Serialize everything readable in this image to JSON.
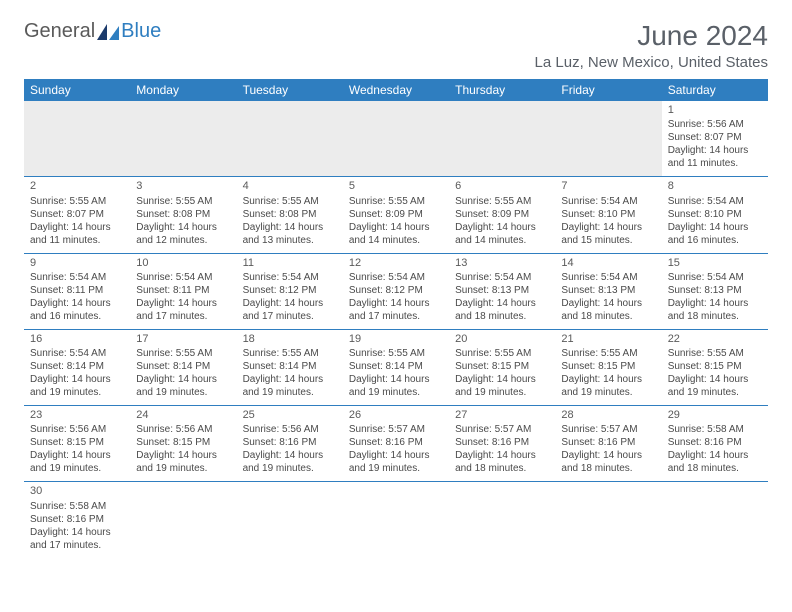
{
  "brand": {
    "part1": "General",
    "part2": "Blue"
  },
  "title": {
    "month": "June 2024",
    "location": "La Luz, New Mexico, United States"
  },
  "colors": {
    "header_bg": "#2f7ec0",
    "header_text": "#ffffff",
    "border": "#2f7ec0",
    "body_text": "#4a4a4a",
    "title_text": "#5a6068",
    "blank_bg": "#ececec",
    "page_bg": "#ffffff"
  },
  "typography": {
    "month_fontsize": 28,
    "location_fontsize": 15,
    "dayhead_fontsize": 12,
    "cell_fontsize": 10
  },
  "day_labels": [
    "Sunday",
    "Monday",
    "Tuesday",
    "Wednesday",
    "Thursday",
    "Friday",
    "Saturday"
  ],
  "weeks": [
    [
      null,
      null,
      null,
      null,
      null,
      null,
      {
        "d": "1",
        "sr": "Sunrise: 5:56 AM",
        "ss": "Sunset: 8:07 PM",
        "dl1": "Daylight: 14 hours",
        "dl2": "and 11 minutes."
      }
    ],
    [
      {
        "d": "2",
        "sr": "Sunrise: 5:55 AM",
        "ss": "Sunset: 8:07 PM",
        "dl1": "Daylight: 14 hours",
        "dl2": "and 11 minutes."
      },
      {
        "d": "3",
        "sr": "Sunrise: 5:55 AM",
        "ss": "Sunset: 8:08 PM",
        "dl1": "Daylight: 14 hours",
        "dl2": "and 12 minutes."
      },
      {
        "d": "4",
        "sr": "Sunrise: 5:55 AM",
        "ss": "Sunset: 8:08 PM",
        "dl1": "Daylight: 14 hours",
        "dl2": "and 13 minutes."
      },
      {
        "d": "5",
        "sr": "Sunrise: 5:55 AM",
        "ss": "Sunset: 8:09 PM",
        "dl1": "Daylight: 14 hours",
        "dl2": "and 14 minutes."
      },
      {
        "d": "6",
        "sr": "Sunrise: 5:55 AM",
        "ss": "Sunset: 8:09 PM",
        "dl1": "Daylight: 14 hours",
        "dl2": "and 14 minutes."
      },
      {
        "d": "7",
        "sr": "Sunrise: 5:54 AM",
        "ss": "Sunset: 8:10 PM",
        "dl1": "Daylight: 14 hours",
        "dl2": "and 15 minutes."
      },
      {
        "d": "8",
        "sr": "Sunrise: 5:54 AM",
        "ss": "Sunset: 8:10 PM",
        "dl1": "Daylight: 14 hours",
        "dl2": "and 16 minutes."
      }
    ],
    [
      {
        "d": "9",
        "sr": "Sunrise: 5:54 AM",
        "ss": "Sunset: 8:11 PM",
        "dl1": "Daylight: 14 hours",
        "dl2": "and 16 minutes."
      },
      {
        "d": "10",
        "sr": "Sunrise: 5:54 AM",
        "ss": "Sunset: 8:11 PM",
        "dl1": "Daylight: 14 hours",
        "dl2": "and 17 minutes."
      },
      {
        "d": "11",
        "sr": "Sunrise: 5:54 AM",
        "ss": "Sunset: 8:12 PM",
        "dl1": "Daylight: 14 hours",
        "dl2": "and 17 minutes."
      },
      {
        "d": "12",
        "sr": "Sunrise: 5:54 AM",
        "ss": "Sunset: 8:12 PM",
        "dl1": "Daylight: 14 hours",
        "dl2": "and 17 minutes."
      },
      {
        "d": "13",
        "sr": "Sunrise: 5:54 AM",
        "ss": "Sunset: 8:13 PM",
        "dl1": "Daylight: 14 hours",
        "dl2": "and 18 minutes."
      },
      {
        "d": "14",
        "sr": "Sunrise: 5:54 AM",
        "ss": "Sunset: 8:13 PM",
        "dl1": "Daylight: 14 hours",
        "dl2": "and 18 minutes."
      },
      {
        "d": "15",
        "sr": "Sunrise: 5:54 AM",
        "ss": "Sunset: 8:13 PM",
        "dl1": "Daylight: 14 hours",
        "dl2": "and 18 minutes."
      }
    ],
    [
      {
        "d": "16",
        "sr": "Sunrise: 5:54 AM",
        "ss": "Sunset: 8:14 PM",
        "dl1": "Daylight: 14 hours",
        "dl2": "and 19 minutes."
      },
      {
        "d": "17",
        "sr": "Sunrise: 5:55 AM",
        "ss": "Sunset: 8:14 PM",
        "dl1": "Daylight: 14 hours",
        "dl2": "and 19 minutes."
      },
      {
        "d": "18",
        "sr": "Sunrise: 5:55 AM",
        "ss": "Sunset: 8:14 PM",
        "dl1": "Daylight: 14 hours",
        "dl2": "and 19 minutes."
      },
      {
        "d": "19",
        "sr": "Sunrise: 5:55 AM",
        "ss": "Sunset: 8:14 PM",
        "dl1": "Daylight: 14 hours",
        "dl2": "and 19 minutes."
      },
      {
        "d": "20",
        "sr": "Sunrise: 5:55 AM",
        "ss": "Sunset: 8:15 PM",
        "dl1": "Daylight: 14 hours",
        "dl2": "and 19 minutes."
      },
      {
        "d": "21",
        "sr": "Sunrise: 5:55 AM",
        "ss": "Sunset: 8:15 PM",
        "dl1": "Daylight: 14 hours",
        "dl2": "and 19 minutes."
      },
      {
        "d": "22",
        "sr": "Sunrise: 5:55 AM",
        "ss": "Sunset: 8:15 PM",
        "dl1": "Daylight: 14 hours",
        "dl2": "and 19 minutes."
      }
    ],
    [
      {
        "d": "23",
        "sr": "Sunrise: 5:56 AM",
        "ss": "Sunset: 8:15 PM",
        "dl1": "Daylight: 14 hours",
        "dl2": "and 19 minutes."
      },
      {
        "d": "24",
        "sr": "Sunrise: 5:56 AM",
        "ss": "Sunset: 8:15 PM",
        "dl1": "Daylight: 14 hours",
        "dl2": "and 19 minutes."
      },
      {
        "d": "25",
        "sr": "Sunrise: 5:56 AM",
        "ss": "Sunset: 8:16 PM",
        "dl1": "Daylight: 14 hours",
        "dl2": "and 19 minutes."
      },
      {
        "d": "26",
        "sr": "Sunrise: 5:57 AM",
        "ss": "Sunset: 8:16 PM",
        "dl1": "Daylight: 14 hours",
        "dl2": "and 19 minutes."
      },
      {
        "d": "27",
        "sr": "Sunrise: 5:57 AM",
        "ss": "Sunset: 8:16 PM",
        "dl1": "Daylight: 14 hours",
        "dl2": "and 18 minutes."
      },
      {
        "d": "28",
        "sr": "Sunrise: 5:57 AM",
        "ss": "Sunset: 8:16 PM",
        "dl1": "Daylight: 14 hours",
        "dl2": "and 18 minutes."
      },
      {
        "d": "29",
        "sr": "Sunrise: 5:58 AM",
        "ss": "Sunset: 8:16 PM",
        "dl1": "Daylight: 14 hours",
        "dl2": "and 18 minutes."
      }
    ],
    [
      {
        "d": "30",
        "sr": "Sunrise: 5:58 AM",
        "ss": "Sunset: 8:16 PM",
        "dl1": "Daylight: 14 hours",
        "dl2": "and 17 minutes."
      },
      null,
      null,
      null,
      null,
      null,
      null
    ]
  ]
}
